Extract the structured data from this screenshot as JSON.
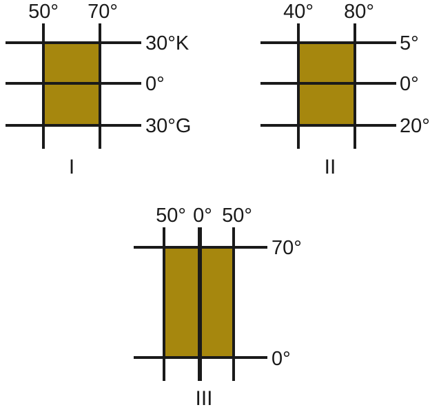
{
  "colors": {
    "fill": "#a6870e",
    "line": "#1a1a1a",
    "background": "#ffffff"
  },
  "diagrams": [
    {
      "id": "I",
      "roman": "I",
      "top_labels": [
        "50°",
        "70°"
      ],
      "right_labels": [
        "30°K",
        "0°",
        "30°G"
      ]
    },
    {
      "id": "II",
      "roman": "II",
      "top_labels": [
        "40°",
        "80°"
      ],
      "right_labels": [
        "5°",
        "0°",
        "20°"
      ]
    },
    {
      "id": "III",
      "roman": "III",
      "top_labels": [
        "50°",
        "0°",
        "50°"
      ],
      "right_labels": [
        "70°",
        "0°"
      ]
    }
  ]
}
